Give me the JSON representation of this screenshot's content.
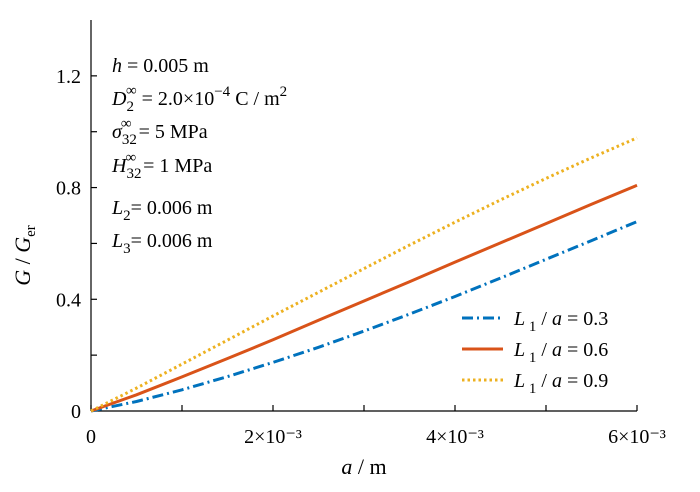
{
  "chart_data": {
    "type": "line",
    "xlabel": "a / m",
    "ylabel": "G / Ger",
    "xlim": [
      0,
      0.006
    ],
    "ylim": [
      0,
      1.4
    ],
    "grid": false,
    "legend_position": "bottom-right",
    "x_ticks": [
      {
        "value": 0,
        "label": "0"
      },
      {
        "value": 0.001,
        "label": ""
      },
      {
        "value": 0.002,
        "label": "2×10⁻³"
      },
      {
        "value": 0.003,
        "label": ""
      },
      {
        "value": 0.004,
        "label": "4×10⁻³"
      },
      {
        "value": 0.005,
        "label": ""
      },
      {
        "value": 0.006,
        "label": "6×10⁻³"
      }
    ],
    "y_ticks": [
      {
        "value": 0,
        "label": "0"
      },
      {
        "value": 0.2,
        "label": ""
      },
      {
        "value": 0.4,
        "label": "0.4"
      },
      {
        "value": 0.6,
        "label": ""
      },
      {
        "value": 0.8,
        "label": "0.8"
      },
      {
        "value": 1.0,
        "label": ""
      },
      {
        "value": 1.2,
        "label": "1.2"
      }
    ],
    "x": [
      0,
      0.0005,
      0.001,
      0.0015,
      0.002,
      0.0025,
      0.003,
      0.0035,
      0.004,
      0.0045,
      0.005,
      0.0055,
      0.006
    ],
    "series": [
      {
        "name": "L1 / a = 0.3",
        "color": "#0072BD",
        "dash": "dashdot",
        "values": [
          0,
          0.034,
          0.076,
          0.123,
          0.174,
          0.228,
          0.286,
          0.347,
          0.41,
          0.476,
          0.543,
          0.61,
          0.678
        ]
      },
      {
        "name": "L1 / a = 0.6",
        "color": "#D95319",
        "dash": "solid",
        "values": [
          0,
          0.058,
          0.122,
          0.188,
          0.255,
          0.325,
          0.394,
          0.463,
          0.533,
          0.602,
          0.671,
          0.74,
          0.808
        ]
      },
      {
        "name": "L1 / a = 0.9",
        "color": "#EDB120",
        "dash": "dotted",
        "values": [
          0,
          0.082,
          0.168,
          0.254,
          0.34,
          0.425,
          0.51,
          0.594,
          0.676,
          0.756,
          0.833,
          0.907,
          0.978
        ]
      }
    ],
    "annotations": [
      "h = 0.005 m",
      "D2∞ = 2.0×10⁻⁴ C / m²",
      "σ32∞ = 5 MPa",
      "H32∞ = 1 MPa",
      "L2 = 0.006 m",
      "L3 = 0.006 m"
    ]
  }
}
